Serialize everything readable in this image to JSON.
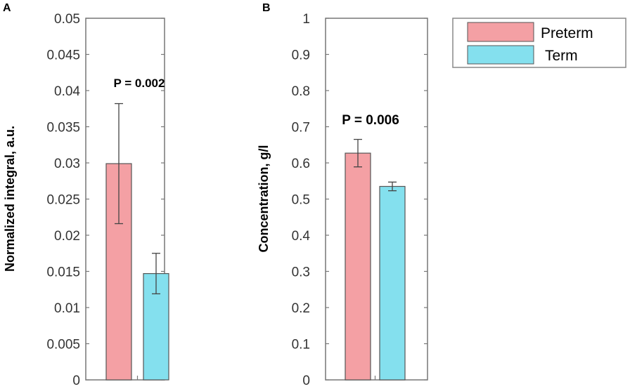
{
  "legend": {
    "entries": [
      {
        "label": "Preterm",
        "color": "#f4a0a4"
      },
      {
        "label": "Term",
        "color": "#84e0ee"
      }
    ]
  },
  "chart_data": [
    {
      "panel_label": "A",
      "type": "bar",
      "categories": [
        "Preterm",
        "Term"
      ],
      "values": [
        0.0299,
        0.0147
      ],
      "errors": [
        0.0083,
        0.0028
      ],
      "colors": [
        "#f4a0a4",
        "#84e0ee"
      ],
      "ylabel": "Normalized integral, a.u.",
      "ylim": [
        0,
        0.05
      ],
      "yticks": [
        "0",
        "0.005",
        "0.01",
        "0.015",
        "0.02",
        "0.025",
        "0.03",
        "0.035",
        "0.04",
        "0.045",
        "0.05"
      ],
      "annotation": "P = 0.002"
    },
    {
      "panel_label": "B",
      "type": "bar",
      "categories": [
        "Preterm",
        "Term"
      ],
      "values": [
        0.627,
        0.535
      ],
      "errors": [
        0.038,
        0.012
      ],
      "colors": [
        "#f4a0a4",
        "#84e0ee"
      ],
      "ylabel": "Concentration, g/l",
      "ylim": [
        0,
        1
      ],
      "yticks": [
        "0",
        "0.1",
        "0.2",
        "0.3",
        "0.4",
        "0.5",
        "0.6",
        "0.7",
        "0.8",
        "0.9",
        "1"
      ],
      "annotation": "P = 0.006"
    }
  ]
}
